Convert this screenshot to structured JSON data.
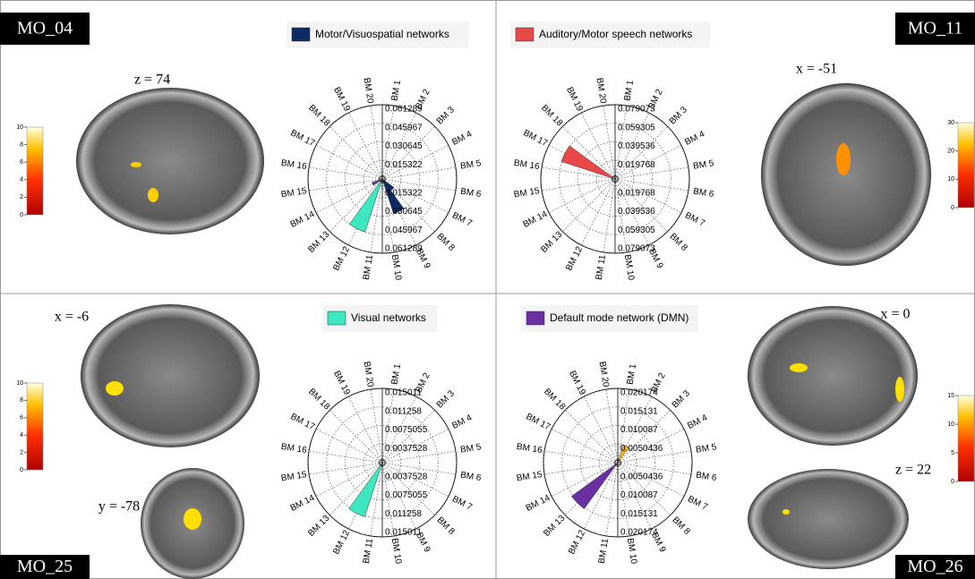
{
  "panels": [
    {
      "label": "MO_04",
      "slices": [
        "z = 74"
      ],
      "colorbar": {
        "lim": [
          0,
          10
        ],
        "ticks": [
          0,
          2,
          4,
          6,
          8,
          10
        ]
      }
    },
    {
      "label": "MO_11",
      "slices": [
        "x = -51"
      ],
      "colorbar": {
        "lim": [
          0,
          30
        ],
        "ticks": [
          0,
          10,
          20,
          30
        ]
      }
    },
    {
      "label": "MO_25",
      "slices": [
        "x = -6",
        "y = -78"
      ],
      "colorbar": {
        "lim": [
          0,
          10
        ],
        "ticks": [
          0,
          2,
          4,
          6,
          8,
          10
        ]
      }
    },
    {
      "label": "MO_26",
      "slices": [
        "x = 0",
        "z = 22"
      ],
      "colorbar": {
        "lim": [
          0,
          15
        ],
        "ticks": [
          0,
          5,
          10,
          15
        ]
      }
    }
  ],
  "chart_data": [
    {
      "type": "polar",
      "categories": [
        "BM 1",
        "BM 2",
        "BM 3",
        "BM 4",
        "BM 5",
        "BM 6",
        "BM 7",
        "BM 8",
        "BM 9",
        "BM 10",
        "BM 11",
        "BM 12",
        "BM 13",
        "BM 14",
        "BM 15",
        "BM 16",
        "BM 17",
        "BM 18",
        "BM 19",
        "BM 20"
      ],
      "rlim": [
        0,
        0.061289
      ],
      "rticks": [
        0.015322,
        0.030645,
        0.045967,
        0.061289
      ],
      "series": [
        {
          "name": "Motor/Visuospatial networks",
          "color": "#0b2a66",
          "values": [
            null,
            null,
            null,
            null,
            null,
            null,
            null,
            0.012,
            0.03,
            null,
            null,
            null,
            null,
            null,
            null,
            null,
            null,
            null,
            null,
            null
          ]
        },
        {
          "color": "#3de8c0",
          "values": [
            null,
            null,
            null,
            null,
            null,
            null,
            null,
            null,
            null,
            null,
            null,
            0.046,
            null,
            null,
            null,
            null,
            null,
            null,
            null,
            null
          ]
        },
        {
          "color": "#6a2fa0",
          "values": [
            null,
            null,
            null,
            null,
            null,
            null,
            null,
            null,
            null,
            null,
            null,
            null,
            null,
            0.009,
            null,
            null,
            null,
            null,
            null,
            null
          ]
        }
      ]
    },
    {
      "type": "polar",
      "categories": [
        "BM 1",
        "BM 2",
        "BM 3",
        "BM 4",
        "BM 5",
        "BM 6",
        "BM 7",
        "BM 8",
        "BM 9",
        "BM 10",
        "BM 11",
        "BM 12",
        "BM 13",
        "BM 14",
        "BM 15",
        "BM 16",
        "BM 17",
        "BM 18",
        "BM 19",
        "BM 20"
      ],
      "rlim": [
        0,
        0.079073
      ],
      "rticks": [
        0.019768,
        0.039536,
        0.059305,
        0.079073
      ],
      "series": [
        {
          "name": "Auditory/Motor speech networks",
          "color": "#e84848",
          "values": [
            null,
            null,
            null,
            null,
            null,
            null,
            null,
            null,
            null,
            null,
            null,
            null,
            null,
            null,
            null,
            null,
            0.06,
            null,
            null,
            null
          ]
        }
      ]
    },
    {
      "type": "polar",
      "categories": [
        "BM 1",
        "BM 2",
        "BM 3",
        "BM 4",
        "BM 5",
        "BM 6",
        "BM 7",
        "BM 8",
        "BM 9",
        "BM 10",
        "BM 11",
        "BM 12",
        "BM 13",
        "BM 14",
        "BM 15",
        "BM 16",
        "BM 17",
        "BM 18",
        "BM 19",
        "BM 20"
      ],
      "rlim": [
        0,
        0.015011
      ],
      "rticks": [
        0.0037528,
        0.0075055,
        0.011258,
        0.015011
      ],
      "series": [
        {
          "name": "Visual networks",
          "color": "#3de8c0",
          "values": [
            null,
            null,
            null,
            null,
            null,
            null,
            null,
            null,
            null,
            null,
            null,
            0.0115,
            null,
            null,
            null,
            null,
            null,
            null,
            null,
            null
          ]
        }
      ]
    },
    {
      "type": "polar",
      "categories": [
        "BM 1",
        "BM 2",
        "BM 3",
        "BM 4",
        "BM 5",
        "BM 6",
        "BM 7",
        "BM 8",
        "BM 9",
        "BM 10",
        "BM 11",
        "BM 12",
        "BM 13",
        "BM 14",
        "BM 15",
        "BM 16",
        "BM 17",
        "BM 18",
        "BM 19",
        "BM 20"
      ],
      "rlim": [
        0,
        0.020174
      ],
      "rticks": [
        0.0050436,
        0.010087,
        0.015131,
        0.020174
      ],
      "series": [
        {
          "name": "Default mode network (DMN)",
          "color": "#6a2fa0",
          "values": [
            null,
            null,
            null,
            null,
            null,
            null,
            null,
            null,
            null,
            null,
            null,
            null,
            0.0155,
            null,
            null,
            null,
            null,
            null,
            null,
            null
          ]
        },
        {
          "color": "#f2b81a",
          "values": [
            null,
            0.005,
            null,
            null,
            null,
            null,
            null,
            null,
            null,
            null,
            null,
            null,
            null,
            null,
            null,
            null,
            null,
            null,
            null,
            null
          ]
        }
      ]
    }
  ]
}
